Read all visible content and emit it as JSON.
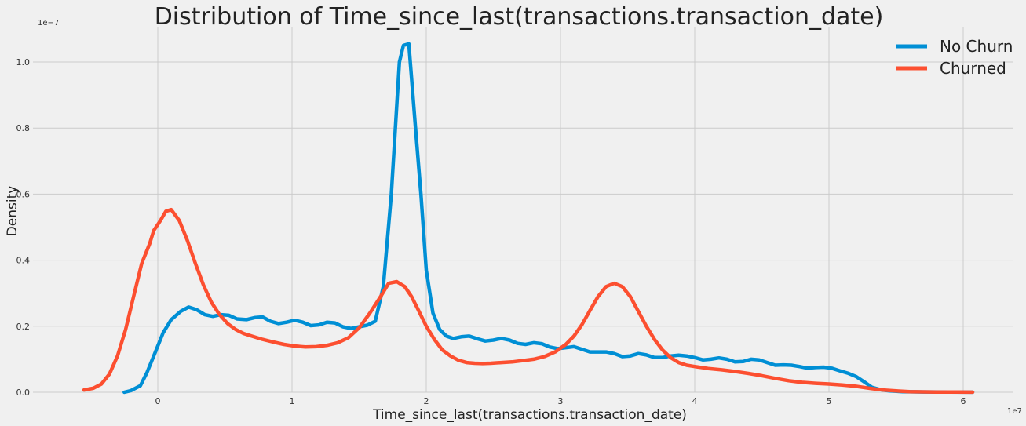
{
  "chart_data": {
    "type": "line",
    "title": "Distribution of Time_since_last(transactions.transaction_date)",
    "xlabel": "Time_since_last(transactions.transaction_date)",
    "ylabel": "Density",
    "x_offset_label": "1e7",
    "y_offset_label": "1e−7",
    "xlim": [
      -0.58,
      6.1
    ],
    "ylim": [
      0,
      1.1
    ],
    "x_ticks": [
      0,
      1,
      2,
      3,
      4,
      5,
      6
    ],
    "x_tick_labels": [
      "0",
      "1",
      "2",
      "3",
      "4",
      "5",
      "6"
    ],
    "y_ticks": [
      0.0,
      0.2,
      0.4,
      0.6,
      0.8,
      1.0
    ],
    "y_tick_labels": [
      "0.0",
      "0.2",
      "0.4",
      "0.6",
      "0.8",
      "1.0"
    ],
    "grid": true,
    "legend_position": "top-right",
    "series": [
      {
        "name": "No Churn",
        "color": "#008fd5",
        "x": [
          -0.25,
          -0.2,
          -0.13,
          -0.08,
          -0.02,
          0.04,
          0.1,
          0.17,
          0.23,
          0.29,
          0.35,
          0.41,
          0.47,
          0.53,
          0.59,
          0.66,
          0.72,
          0.78,
          0.84,
          0.9,
          0.96,
          1.02,
          1.08,
          1.14,
          1.2,
          1.26,
          1.32,
          1.38,
          1.44,
          1.5,
          1.56,
          1.62,
          1.68,
          1.74,
          1.8,
          1.83,
          1.87,
          1.92,
          1.96,
          2.0,
          2.05,
          2.1,
          2.15,
          2.2,
          2.26,
          2.32,
          2.38,
          2.44,
          2.5,
          2.56,
          2.62,
          2.68,
          2.74,
          2.8,
          2.86,
          2.92,
          2.98,
          3.04,
          3.1,
          3.16,
          3.22,
          3.28,
          3.34,
          3.4,
          3.46,
          3.52,
          3.58,
          3.64,
          3.7,
          3.76,
          3.82,
          3.88,
          3.94,
          4.0,
          4.06,
          4.12,
          4.18,
          4.24,
          4.3,
          4.36,
          4.42,
          4.48,
          4.54,
          4.6,
          4.66,
          4.72,
          4.78,
          4.84,
          4.9,
          4.96,
          5.02,
          5.08,
          5.14,
          5.2,
          5.26,
          5.32,
          5.38,
          5.45,
          5.55,
          5.7,
          5.9,
          6.07
        ],
        "y": [
          0.0,
          0.005,
          0.02,
          0.06,
          0.12,
          0.18,
          0.22,
          0.245,
          0.258,
          0.25,
          0.235,
          0.23,
          0.235,
          0.233,
          0.222,
          0.22,
          0.226,
          0.228,
          0.215,
          0.208,
          0.212,
          0.218,
          0.212,
          0.202,
          0.204,
          0.212,
          0.21,
          0.198,
          0.193,
          0.198,
          0.203,
          0.215,
          0.32,
          0.6,
          1.0,
          1.05,
          1.055,
          0.8,
          0.6,
          0.37,
          0.24,
          0.19,
          0.17,
          0.163,
          0.168,
          0.17,
          0.162,
          0.155,
          0.158,
          0.163,
          0.158,
          0.148,
          0.145,
          0.15,
          0.147,
          0.137,
          0.132,
          0.135,
          0.138,
          0.13,
          0.122,
          0.122,
          0.122,
          0.117,
          0.108,
          0.11,
          0.117,
          0.113,
          0.105,
          0.105,
          0.11,
          0.112,
          0.11,
          0.105,
          0.098,
          0.1,
          0.104,
          0.1,
          0.092,
          0.093,
          0.1,
          0.098,
          0.09,
          0.082,
          0.083,
          0.082,
          0.078,
          0.073,
          0.075,
          0.076,
          0.073,
          0.065,
          0.058,
          0.048,
          0.032,
          0.015,
          0.008,
          0.004,
          0.002,
          0.001,
          0.0005,
          0.0002
        ]
      },
      {
        "name": "Churned",
        "color": "#fc4f30",
        "x": [
          -0.55,
          -0.48,
          -0.42,
          -0.36,
          -0.3,
          -0.24,
          -0.18,
          -0.12,
          -0.06,
          -0.03,
          0.02,
          0.06,
          0.1,
          0.16,
          0.22,
          0.28,
          0.34,
          0.4,
          0.46,
          0.52,
          0.58,
          0.64,
          0.7,
          0.78,
          0.86,
          0.94,
          1.02,
          1.1,
          1.18,
          1.26,
          1.34,
          1.42,
          1.5,
          1.58,
          1.66,
          1.72,
          1.78,
          1.84,
          1.89,
          1.94,
          2.0,
          2.06,
          2.12,
          2.18,
          2.24,
          2.3,
          2.36,
          2.42,
          2.48,
          2.56,
          2.64,
          2.72,
          2.8,
          2.88,
          2.96,
          3.04,
          3.1,
          3.16,
          3.22,
          3.28,
          3.34,
          3.4,
          3.46,
          3.52,
          3.58,
          3.64,
          3.7,
          3.76,
          3.82,
          3.88,
          3.94,
          4.0,
          4.1,
          4.2,
          4.3,
          4.4,
          4.5,
          4.6,
          4.7,
          4.8,
          4.9,
          5.0,
          5.1,
          5.2,
          5.3,
          5.4,
          5.5,
          5.6,
          5.7,
          5.8,
          5.95,
          6.07
        ],
        "y": [
          0.007,
          0.012,
          0.025,
          0.055,
          0.11,
          0.19,
          0.29,
          0.39,
          0.45,
          0.49,
          0.52,
          0.548,
          0.553,
          0.52,
          0.46,
          0.39,
          0.325,
          0.272,
          0.235,
          0.208,
          0.19,
          0.178,
          0.17,
          0.16,
          0.152,
          0.145,
          0.14,
          0.137,
          0.138,
          0.142,
          0.15,
          0.165,
          0.195,
          0.24,
          0.29,
          0.33,
          0.335,
          0.32,
          0.29,
          0.25,
          0.2,
          0.16,
          0.128,
          0.11,
          0.097,
          0.09,
          0.088,
          0.087,
          0.088,
          0.09,
          0.092,
          0.096,
          0.1,
          0.108,
          0.122,
          0.145,
          0.17,
          0.205,
          0.248,
          0.29,
          0.32,
          0.33,
          0.32,
          0.29,
          0.245,
          0.2,
          0.16,
          0.128,
          0.105,
          0.09,
          0.082,
          0.078,
          0.072,
          0.068,
          0.063,
          0.057,
          0.05,
          0.042,
          0.035,
          0.03,
          0.027,
          0.025,
          0.022,
          0.018,
          0.012,
          0.007,
          0.004,
          0.002,
          0.0012,
          0.0008,
          0.0004,
          0.0002
        ]
      }
    ]
  }
}
